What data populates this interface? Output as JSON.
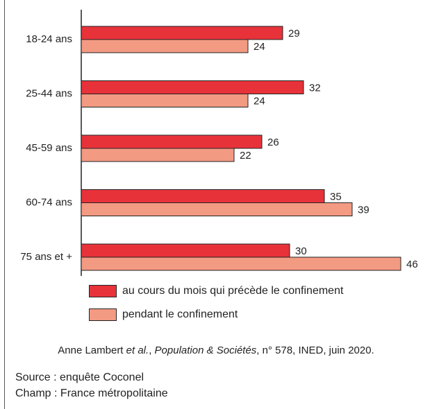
{
  "chart_data": {
    "type": "bar",
    "orientation": "horizontal",
    "categories": [
      "18-24 ans",
      "25-44 ans",
      "45-59 ans",
      "60-74 ans",
      "75 ans et +"
    ],
    "series": [
      {
        "name": "au cours du mois qui précède le confinement",
        "values": [
          29,
          32,
          26,
          35,
          30
        ],
        "color": "#e8323a"
      },
      {
        "name": "pendant le confinement",
        "values": [
          24,
          24,
          22,
          39,
          46
        ],
        "color": "#f39a82"
      }
    ],
    "xlim": [
      0,
      46
    ],
    "grid": false,
    "legend_position": "bottom"
  },
  "citation": {
    "before": "Anne Lambert ",
    "italic1": "et al.",
    "middle": ", ",
    "italic2": "Population & Sociétés",
    "after": ", n° 578, INED, juin 2020."
  },
  "source": "Source : enquête Coconel",
  "champ": "Champ : France métropolitaine",
  "colors": {
    "bar_border": "#222222",
    "axis": "#222222"
  }
}
